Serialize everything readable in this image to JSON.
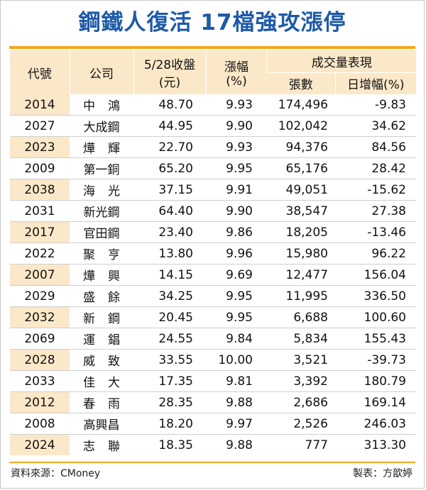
{
  "title": "鋼鐵人復活 17檔強攻漲停",
  "header": {
    "code": "代號",
    "company": "公司",
    "close_line1": "5/28收盤",
    "close_line2": "(元)",
    "change_line1": "漲幅",
    "change_line2": "(%)",
    "volume_group": "成交量表現",
    "lots": "張數",
    "daily_change": "日增幅(%)"
  },
  "rows": [
    {
      "code": "2014",
      "company": "中鴻",
      "close": "48.70",
      "change": "9.93",
      "lots": "174,496",
      "daily_change": "-9.83"
    },
    {
      "code": "2027",
      "company": "大成鋼",
      "close": "44.95",
      "change": "9.90",
      "lots": "102,042",
      "daily_change": "34.62"
    },
    {
      "code": "2023",
      "company": "燁輝",
      "close": "22.70",
      "change": "9.93",
      "lots": "94,376",
      "daily_change": "84.56"
    },
    {
      "code": "2009",
      "company": "第一銅",
      "close": "65.20",
      "change": "9.95",
      "lots": "65,176",
      "daily_change": "28.42"
    },
    {
      "code": "2038",
      "company": "海光",
      "close": "37.15",
      "change": "9.91",
      "lots": "49,051",
      "daily_change": "-15.62"
    },
    {
      "code": "2031",
      "company": "新光鋼",
      "close": "64.40",
      "change": "9.90",
      "lots": "38,547",
      "daily_change": "27.38"
    },
    {
      "code": "2017",
      "company": "官田鋼",
      "close": "23.40",
      "change": "9.86",
      "lots": "18,205",
      "daily_change": "-13.46"
    },
    {
      "code": "2022",
      "company": "聚亨",
      "close": "13.80",
      "change": "9.96",
      "lots": "15,980",
      "daily_change": "96.22"
    },
    {
      "code": "2007",
      "company": "燁興",
      "close": "14.15",
      "change": "9.69",
      "lots": "12,477",
      "daily_change": "156.04"
    },
    {
      "code": "2029",
      "company": "盛餘",
      "close": "34.25",
      "change": "9.95",
      "lots": "11,995",
      "daily_change": "336.50"
    },
    {
      "code": "2032",
      "company": "新鋼",
      "close": "20.45",
      "change": "9.95",
      "lots": "6,688",
      "daily_change": "100.60"
    },
    {
      "code": "2069",
      "company": "運錩",
      "close": "24.55",
      "change": "9.84",
      "lots": "5,834",
      "daily_change": "155.43"
    },
    {
      "code": "2028",
      "company": "威致",
      "close": "33.55",
      "change": "10.00",
      "lots": "3,521",
      "daily_change": "-39.73"
    },
    {
      "code": "2033",
      "company": "佳大",
      "close": "17.35",
      "change": "9.81",
      "lots": "3,392",
      "daily_change": "180.79"
    },
    {
      "code": "2012",
      "company": "春雨",
      "close": "28.35",
      "change": "9.88",
      "lots": "2,686",
      "daily_change": "169.14"
    },
    {
      "code": "2008",
      "company": "高興昌",
      "close": "18.20",
      "change": "9.97",
      "lots": "2,526",
      "daily_change": "246.03"
    },
    {
      "code": "2024",
      "company": "志聯",
      "close": "18.35",
      "change": "9.88",
      "lots": "777",
      "daily_change": "313.30"
    }
  ],
  "footer": {
    "source": "資料來源：CMoney",
    "credit": "製表：方歆婷"
  },
  "colors": {
    "title": "#1e5aa8",
    "accent_rule": "#f4a61a",
    "header_bg": "#fbe8c9"
  }
}
